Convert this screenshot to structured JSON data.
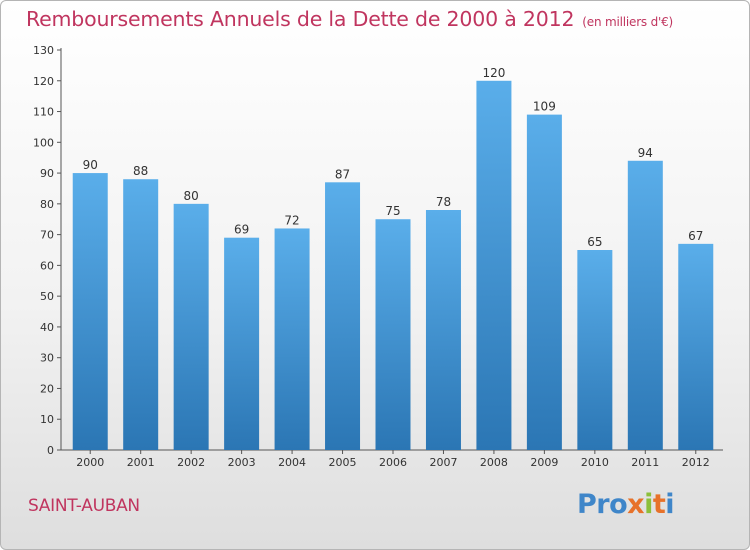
{
  "header": {
    "title": "Remboursements Annuels de la Dette de 2000 à 2012",
    "unit": "(en milliers d'€)"
  },
  "footer": {
    "commune": "SAINT-AUBAN",
    "logo_parts": [
      "Pro",
      "x",
      "i",
      "t",
      "i"
    ]
  },
  "colors": {
    "accent": "#c0355f",
    "bar_top": "#5aaeea",
    "bar_bottom": "#2b76b4"
  },
  "chart_data": {
    "type": "bar",
    "categories": [
      "2000",
      "2001",
      "2002",
      "2003",
      "2004",
      "2005",
      "2006",
      "2007",
      "2008",
      "2009",
      "2010",
      "2011",
      "2012"
    ],
    "values": [
      90,
      88,
      80,
      69,
      72,
      87,
      75,
      78,
      120,
      109,
      65,
      94,
      67
    ],
    "ylim": [
      0,
      130
    ],
    "yticks": [
      0,
      10,
      20,
      30,
      40,
      50,
      60,
      70,
      80,
      90,
      100,
      110,
      120,
      130
    ],
    "grid": false
  }
}
